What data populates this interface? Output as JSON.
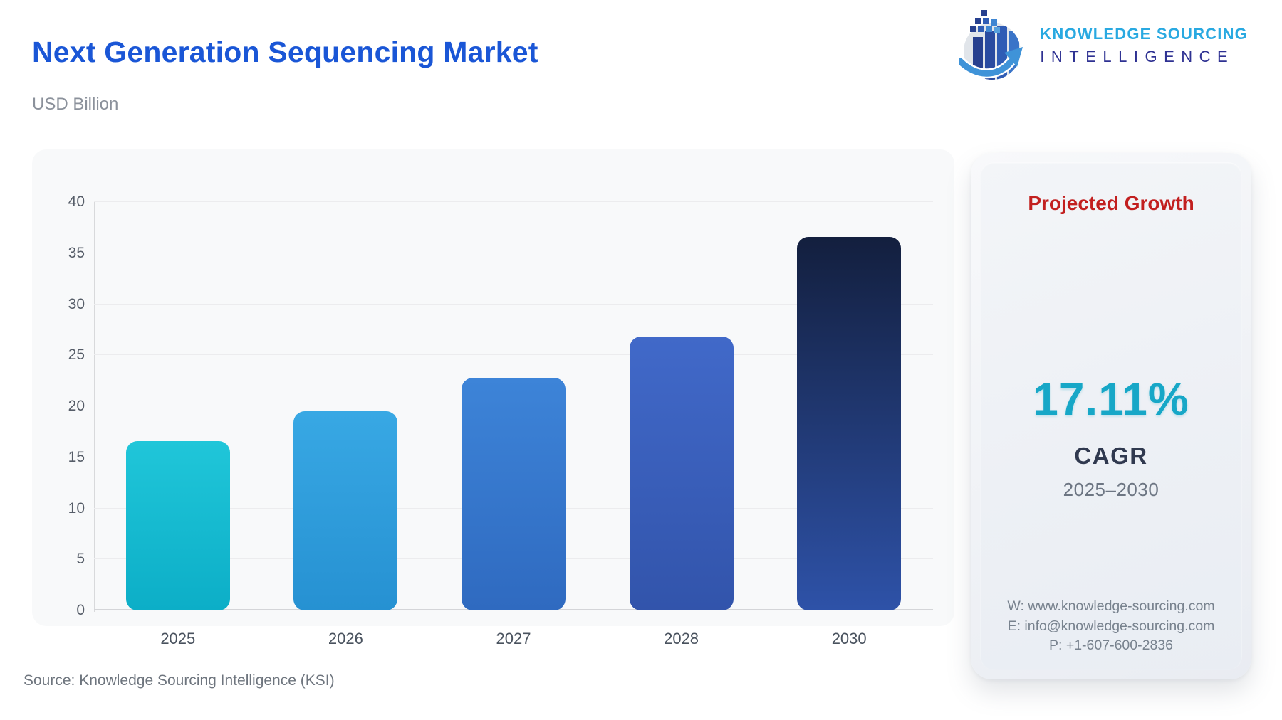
{
  "header": {
    "title": "Next Generation Sequencing Market",
    "unit": "USD Billion",
    "logo": {
      "line1": "KNOWLEDGE SOURCING",
      "line2": "INTELLIGENCE"
    }
  },
  "chart_data": {
    "type": "bar",
    "title": "Next Generation Sequencing Market",
    "ylabel": "USD Billion",
    "xlabel": "",
    "categories": [
      "2025",
      "2026",
      "2027",
      "2028",
      "2030"
    ],
    "values": [
      16.6,
      19.5,
      22.8,
      26.8,
      36.6
    ],
    "ylim": [
      0,
      40
    ],
    "yticks": [
      0,
      5,
      10,
      15,
      20,
      25,
      30,
      35,
      40
    ],
    "grid": true,
    "legend": false,
    "bar_gradients": [
      [
        "#20c6d9",
        "#0caec7"
      ],
      [
        "#38a8e4",
        "#2691d2"
      ],
      [
        "#3d84d8",
        "#2f6ac0"
      ],
      [
        "#4169c9",
        "#3254ab"
      ],
      [
        "#131f3e",
        "#2e52a8"
      ]
    ]
  },
  "growth_panel": {
    "heading": "Projected Growth",
    "value": "17.11%",
    "metric": "CAGR",
    "period": "2025–2030",
    "contact": {
      "website": "W: www.knowledge-sourcing.com",
      "email": "E: info@knowledge-sourcing.com",
      "phone": "P: +1-607-600-2836"
    }
  },
  "source_note": "Source: Knowledge Sourcing Intelligence (KSI)",
  "colors": {
    "title_blue": "#1a56d6",
    "heading_red": "#c21f1f",
    "cagr_teal": "#17a7c7",
    "logo_light_blue": "#29a9e1",
    "logo_dark_blue": "#2e3192"
  }
}
